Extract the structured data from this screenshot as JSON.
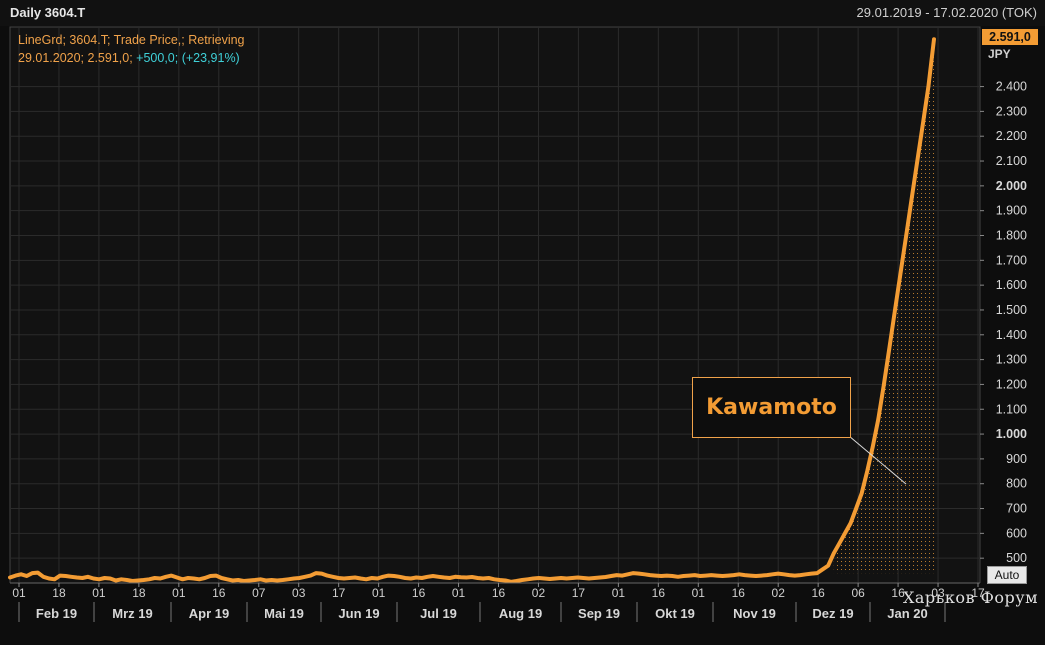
{
  "header": {
    "ticker": "Daily 3604.T",
    "date_range": "29.01.2019 - 17.02.2020 (TOK)"
  },
  "legend": {
    "line1": "LineGrd; 3604.T; Trade Price,; Retrieving",
    "line2_date_price": "29.01.2020; 2.591,0;",
    "line2_change": "+500,0; (+23,91%)"
  },
  "last_price_label": "2.591,0",
  "unit_label": "JPY",
  "auto_button": "Auto",
  "callout_text": "Kawamoto",
  "watermark": "Харьков Форум",
  "colors": {
    "line": "#f39c34",
    "background": "#0d0d0d",
    "grid": "#2a2a2a",
    "change": "#3fd0d8"
  },
  "chart_data": {
    "type": "line",
    "title": "Daily 3604.T",
    "ylabel": "JPY",
    "ylim": [
      400,
      2640
    ],
    "y_ticks": [
      500,
      600,
      700,
      800,
      900,
      1000,
      1100,
      1200,
      1300,
      1400,
      1500,
      1600,
      1700,
      1800,
      1900,
      2000,
      2100,
      2200,
      2300,
      2400
    ],
    "y_tick_labels": [
      "500",
      "600",
      "700",
      "800",
      "900",
      "1.000",
      "1.100",
      "1.200",
      "1.300",
      "1.400",
      "1.500",
      "1.600",
      "1.700",
      "1.800",
      "1.900",
      "2.000",
      "2.100",
      "2.200",
      "2.300",
      "2.400"
    ],
    "y_bold_ticks": [
      "1.000",
      "2.000"
    ],
    "day_ticks": [
      "01",
      "18",
      "01",
      "18",
      "01",
      "16",
      "07",
      "03",
      "17",
      "01",
      "16",
      "01",
      "16",
      "02",
      "17",
      "01",
      "16",
      "01",
      "16",
      "02",
      "16",
      "06",
      "16",
      "03",
      "17"
    ],
    "month_labels": [
      "Feb 19",
      "Mrz 19",
      "Apr 19",
      "Mai 19",
      "Jun 19",
      "Jul 19",
      "Aug 19",
      "Sep 19",
      "Okt 19",
      "Nov 19",
      "Dez 19",
      "Jan 20"
    ],
    "grid": true,
    "series": [
      {
        "values": [
          422,
          430,
          435,
          428,
          440,
          442,
          425,
          418,
          415,
          430,
          428,
          425,
          422,
          420,
          425,
          418,
          415,
          420,
          418,
          410,
          415,
          412,
          408,
          410,
          412,
          415,
          420,
          418,
          425,
          430,
          422,
          415,
          420,
          418,
          415,
          420,
          428,
          430,
          420,
          415,
          410,
          412,
          408,
          410,
          412,
          415,
          410,
          412,
          410,
          412,
          415,
          418,
          420,
          425,
          430,
          440,
          438,
          430,
          425,
          420,
          418,
          420,
          422,
          418,
          415,
          420,
          418,
          425,
          430,
          428,
          425,
          420,
          418,
          422,
          420,
          425,
          428,
          425,
          422,
          420,
          425,
          423,
          422,
          424,
          420,
          418,
          420,
          415,
          412,
          410,
          405,
          408,
          412,
          415,
          418,
          420,
          418,
          416,
          418,
          420,
          418,
          420,
          422,
          420,
          418,
          420,
          422,
          424,
          428,
          432,
          430,
          435,
          440,
          438,
          435,
          432,
          430,
          428,
          430,
          428,
          425,
          428,
          430,
          432,
          428,
          430,
          432,
          430,
          428,
          430,
          432,
          435,
          432,
          430,
          428,
          430,
          432,
          435,
          438,
          435,
          432,
          430,
          432,
          435,
          438,
          440,
          455,
          470,
          520,
          560,
          600,
          640,
          700,
          760,
          850,
          950,
          1060,
          1200,
          1350,
          1500,
          1650,
          1800,
          1950,
          2100,
          2250,
          2400,
          2591
        ]
      }
    ]
  }
}
